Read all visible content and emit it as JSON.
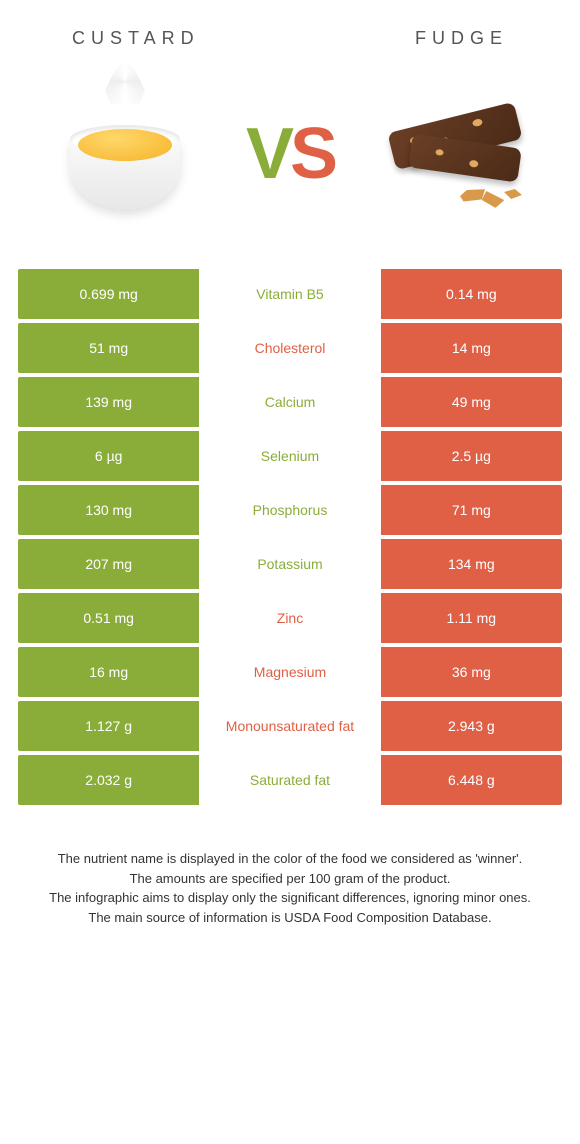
{
  "colors": {
    "green": "#8aad3a",
    "orange": "#e06046"
  },
  "header": {
    "left": "Custard",
    "right": "Fudge"
  },
  "vs": {
    "v": "V",
    "s": "S"
  },
  "rows": [
    {
      "left": "0.699 mg",
      "mid": "Vitamin B5",
      "right": "0.14 mg",
      "winner": "left"
    },
    {
      "left": "51 mg",
      "mid": "Cholesterol",
      "right": "14 mg",
      "winner": "right"
    },
    {
      "left": "139 mg",
      "mid": "Calcium",
      "right": "49 mg",
      "winner": "left"
    },
    {
      "left": "6 µg",
      "mid": "Selenium",
      "right": "2.5 µg",
      "winner": "left"
    },
    {
      "left": "130 mg",
      "mid": "Phosphorus",
      "right": "71 mg",
      "winner": "left"
    },
    {
      "left": "207 mg",
      "mid": "Potassium",
      "right": "134 mg",
      "winner": "left"
    },
    {
      "left": "0.51 mg",
      "mid": "Zinc",
      "right": "1.11 mg",
      "winner": "right"
    },
    {
      "left": "16 mg",
      "mid": "Magnesium",
      "right": "36 mg",
      "winner": "right"
    },
    {
      "left": "1.127 g",
      "mid": "Monounsaturated fat",
      "right": "2.943 g",
      "winner": "right"
    },
    {
      "left": "2.032 g",
      "mid": "Saturated fat",
      "right": "6.448 g",
      "winner": "left"
    }
  ],
  "footer": {
    "l1": "The nutrient name is displayed in the color of the food we considered as 'winner'.",
    "l2": "The amounts are specified per 100 gram of the product.",
    "l3": "The infographic aims to display only the significant differences, ignoring minor ones.",
    "l4": "The main source of information is USDA Food Composition Database."
  }
}
